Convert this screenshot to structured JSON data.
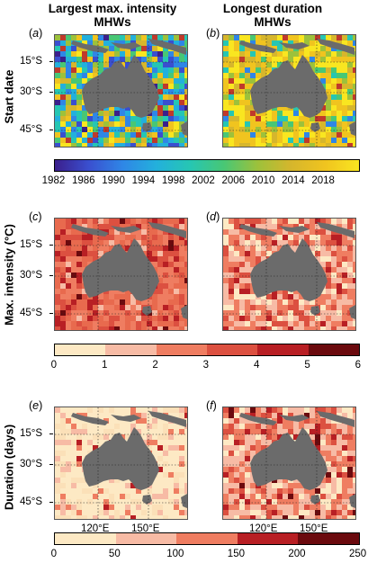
{
  "columns": [
    {
      "title": "Largest max. intensity MHWs"
    },
    {
      "title": "Longest duration MHWs"
    }
  ],
  "rows": [
    {
      "title": "Start date"
    },
    {
      "title": "Max. intensity (°C)"
    },
    {
      "title": "Duration (days)"
    }
  ],
  "panel_labels": [
    "a",
    "b",
    "c",
    "d",
    "e",
    "f"
  ],
  "lat_ticks": [
    "15°S",
    "30°S",
    "45°S"
  ],
  "lon_ticks": [
    "120°E",
    "150°E"
  ],
  "colorbars": [
    {
      "name": "start-date",
      "ticks": [
        "1982",
        "1986",
        "1990",
        "1994",
        "1998",
        "2002",
        "2006",
        "2010",
        "2014",
        "2018"
      ],
      "colors": [
        "#3b1f8c",
        "#3a4fcf",
        "#2f86e6",
        "#23b0dc",
        "#26c6b3",
        "#48c775",
        "#9dc13b",
        "#d6b62c",
        "#f0c41f",
        "#f9e620"
      ]
    },
    {
      "name": "max-intensity",
      "ticks": [
        "0",
        "1",
        "2",
        "3",
        "4",
        "5",
        "6"
      ],
      "colors": [
        "#fde9c4",
        "#f7bba5",
        "#ef7d61",
        "#dc5040",
        "#b81f24",
        "#6b0a0e"
      ]
    },
    {
      "name": "duration",
      "ticks": [
        "0",
        "50",
        "100",
        "150",
        "200",
        "250"
      ],
      "colors": [
        "#fde9c4",
        "#f7bba5",
        "#ef7d61",
        "#b81f24",
        "#6b0a0e"
      ]
    }
  ],
  "land_color": "#6b6b6b",
  "grid_color": "#222222"
}
